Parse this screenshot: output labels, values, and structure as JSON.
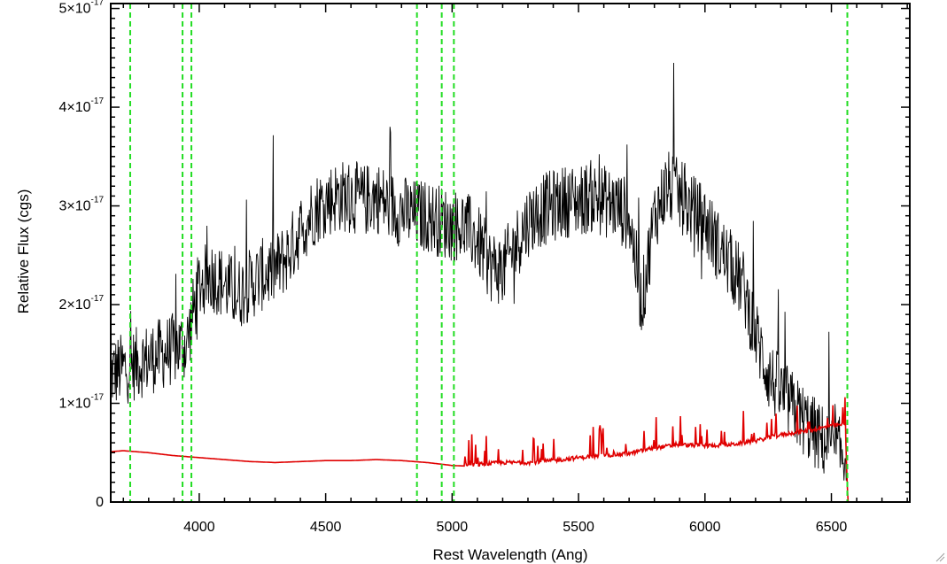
{
  "chart_data": {
    "type": "line",
    "title": "",
    "xlabel": "Rest Wavelength (Ang)",
    "ylabel": "Relative Flux (cgs)",
    "xlim": [
      3650,
      6810
    ],
    "ylim": [
      0,
      5.05e-17
    ],
    "x_ticks": [
      "4000",
      "4500",
      "5000",
      "5500",
      "6000",
      "6500"
    ],
    "x_tick_values": [
      4000,
      4500,
      5000,
      5500,
      6000,
      6500
    ],
    "y_ticks": [
      "0",
      "1×10",
      "2×10",
      "3×10",
      "4×10",
      "5×10"
    ],
    "y_tick_exponent": "-17",
    "y_tick_values": [
      0,
      1e-17,
      2e-17,
      3e-17,
      4e-17,
      5e-17
    ],
    "grid": false,
    "legend": "none",
    "series": [
      {
        "color": "#000000",
        "x": [
          3650,
          3700,
          3750,
          3800,
          3850,
          3900,
          3950,
          4000,
          4050,
          4100,
          4150,
          4200,
          4250,
          4300,
          4350,
          4400,
          4450,
          4500,
          4550,
          4600,
          4650,
          4700,
          4750,
          4800,
          4850,
          4900,
          4950,
          5000,
          5050,
          5100,
          5150,
          5200,
          5250,
          5300,
          5350,
          5400,
          5450,
          5500,
          5550,
          5600,
          5650,
          5700,
          5750,
          5800,
          5850,
          5900,
          5950,
          6000,
          6050,
          6100,
          6150,
          6200,
          6250,
          6300,
          6350,
          6400,
          6450,
          6500,
          6560
        ],
        "values": [
          1.3e-17,
          1.35e-17,
          1.4e-17,
          1.45e-17,
          1.5e-17,
          1.55e-17,
          1.6e-17,
          2.2e-17,
          2.3e-17,
          2.2e-17,
          2.1e-17,
          2.2e-17,
          2.3e-17,
          2.35e-17,
          2.5e-17,
          2.75e-17,
          2.95e-17,
          3.05e-17,
          3.1e-17,
          3.1e-17,
          3.05e-17,
          3.1e-17,
          3e-17,
          2.95e-17,
          2.9e-17,
          2.9e-17,
          2.85e-17,
          2.8e-17,
          2.8e-17,
          2.65e-17,
          2.4e-17,
          2.35e-17,
          2.6e-17,
          2.85e-17,
          2.95e-17,
          3e-17,
          3.05e-17,
          3.05e-17,
          3.1e-17,
          3.05e-17,
          3e-17,
          2.9e-17,
          2e-17,
          2.9e-17,
          3.2e-17,
          3.1e-17,
          2.95e-17,
          2.85e-17,
          2.6e-17,
          2.4e-17,
          2.2e-17,
          1.7e-17,
          1.3e-17,
          1.1e-17,
          9.5e-18,
          8e-18,
          6.5e-18,
          5.5e-18,
          4.5e-18
        ]
      },
      {
        "color": "#e00000",
        "x": [
          3650,
          3700,
          3800,
          3900,
          4000,
          4100,
          4200,
          4300,
          4400,
          4500,
          4600,
          4700,
          4800,
          4900,
          5000,
          5100,
          5200,
          5300,
          5400,
          5500,
          5600,
          5700,
          5800,
          5900,
          6000,
          6100,
          6200,
          6300,
          6400,
          6500,
          6555,
          6565,
          6810
        ],
        "values": [
          5.1e-18,
          5.2e-18,
          5e-18,
          4.7e-18,
          4.5e-18,
          4.3e-18,
          4.1e-18,
          4e-18,
          4.1e-18,
          4.2e-18,
          4.2e-18,
          4.3e-18,
          4.2e-18,
          4e-18,
          3.7e-18,
          3.6e-18,
          3.8e-18,
          3.8e-18,
          4e-18,
          4.3e-18,
          4.5e-18,
          4.7e-18,
          5.3e-18,
          5.6e-18,
          5.5e-18,
          5.6e-18,
          6e-18,
          6.6e-18,
          7e-18,
          7.5e-18,
          7.7e-18,
          0.0,
          0.0
        ]
      }
    ],
    "vertical_lines": [
      3727,
      3934,
      3969,
      4861,
      4959,
      5007,
      6563
    ]
  }
}
